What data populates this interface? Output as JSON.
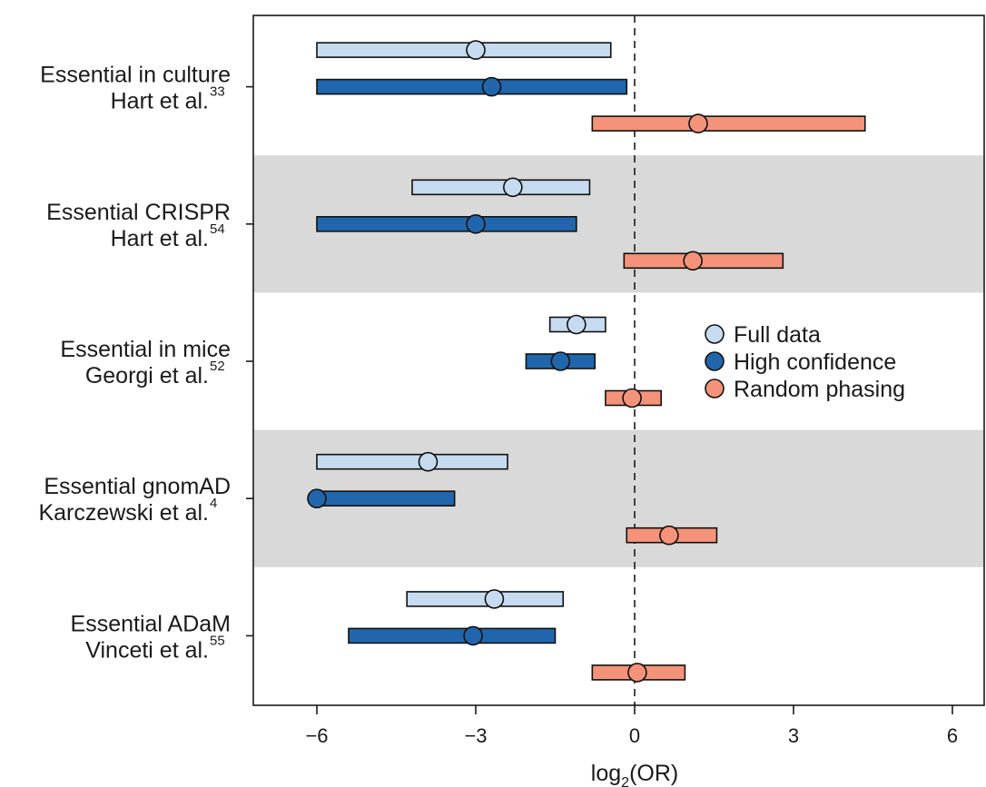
{
  "chart_data": {
    "type": "forest",
    "xlabel": "log2(OR)",
    "xlabel_parts": {
      "base": "log",
      "subscript": "2",
      "rest": "(OR)"
    },
    "xlim": [
      -7.2,
      6.6
    ],
    "xticks": [
      -6,
      -3,
      0,
      3,
      6
    ],
    "xtick_labels": [
      "−6",
      "−3",
      "0",
      "3",
      "6"
    ],
    "reference_line_x": 0,
    "series": [
      {
        "name": "Full data",
        "color": "#c6dbef"
      },
      {
        "name": "High confidence",
        "color": "#2166ac"
      },
      {
        "name": "Random phasing",
        "color": "#f4937a"
      }
    ],
    "groups": [
      {
        "label_line1": "Essential in culture",
        "label_line2": "Hart et al.",
        "ref": "33",
        "shaded": false,
        "estimates": [
          {
            "series": "Full data",
            "point": -3.0,
            "lo": -6.0,
            "hi": -0.45
          },
          {
            "series": "High confidence",
            "point": -2.7,
            "lo": -6.0,
            "hi": -0.15
          },
          {
            "series": "Random phasing",
            "point": 1.2,
            "lo": -0.8,
            "hi": 4.35
          }
        ]
      },
      {
        "label_line1": "Essential CRISPR",
        "label_line2": "Hart  et al.",
        "ref": "54",
        "shaded": true,
        "estimates": [
          {
            "series": "Full data",
            "point": -2.3,
            "lo": -4.2,
            "hi": -0.85
          },
          {
            "series": "High confidence",
            "point": -3.0,
            "lo": -6.0,
            "hi": -1.1
          },
          {
            "series": "Random phasing",
            "point": 1.1,
            "lo": -0.2,
            "hi": 2.8
          }
        ]
      },
      {
        "label_line1": "Essential in mice",
        "label_line2": "Georgi et al.",
        "ref": "52",
        "shaded": false,
        "estimates": [
          {
            "series": "Full data",
            "point": -1.1,
            "lo": -1.6,
            "hi": -0.55
          },
          {
            "series": "High confidence",
            "point": -1.4,
            "lo": -2.05,
            "hi": -0.75
          },
          {
            "series": "Random phasing",
            "point": -0.05,
            "lo": -0.55,
            "hi": 0.5
          }
        ]
      },
      {
        "label_line1": "Essential gnomAD",
        "label_line2": "Karczewski et al.",
        "ref": "4",
        "shaded": true,
        "estimates": [
          {
            "series": "Full data",
            "point": -3.9,
            "lo": -6.0,
            "hi": -2.4
          },
          {
            "series": "High confidence",
            "point": -6.0,
            "lo": -6.0,
            "hi": -3.4
          },
          {
            "series": "Random phasing",
            "point": 0.65,
            "lo": -0.15,
            "hi": 1.55
          }
        ]
      },
      {
        "label_line1": "Essential ADaM",
        "label_line2": "Vinceti et al.",
        "ref": "55",
        "shaded": false,
        "estimates": [
          {
            "series": "Full data",
            "point": -2.65,
            "lo": -4.3,
            "hi": -1.35
          },
          {
            "series": "High confidence",
            "point": -3.05,
            "lo": -5.4,
            "hi": -1.5
          },
          {
            "series": "Random phasing",
            "point": 0.05,
            "lo": -0.8,
            "hi": 0.95
          }
        ]
      }
    ],
    "legend": {
      "position": "right-middle"
    },
    "band_color": "#d9d9d9"
  }
}
